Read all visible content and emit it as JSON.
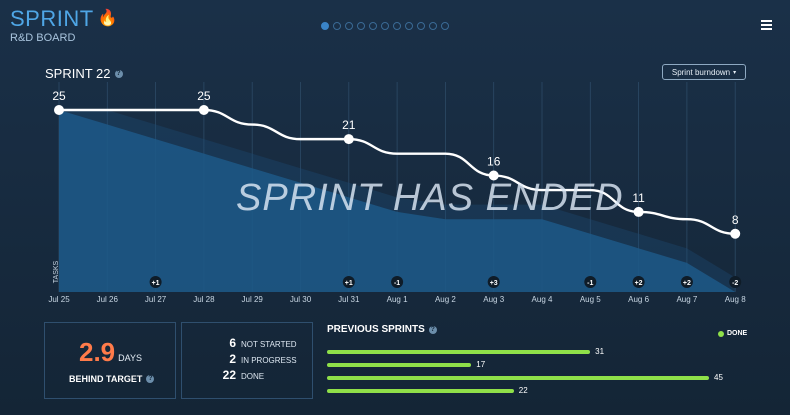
{
  "brand": {
    "title": "SPRINT",
    "subtitle": "R&D BOARD",
    "icon": "flame-icon",
    "accent": "#4fa6e6"
  },
  "pager": {
    "count": 11,
    "active_index": 0
  },
  "sprint": {
    "title": "SPRINT 22",
    "help_label": "?"
  },
  "dropdown": {
    "label": "Sprint burndown",
    "caret": "▾"
  },
  "banner": "SPRINT HAS ENDED",
  "chart_data": {
    "type": "line",
    "ylabel": "TASKS",
    "x": [
      "Jul 25",
      "Jul 26",
      "Jul 27",
      "Jul 28",
      "Jul 29",
      "Jul 30",
      "Jul 31",
      "Aug 1",
      "Aug 2",
      "Aug 3",
      "Aug 4",
      "Aug 5",
      "Aug 6",
      "Aug 7",
      "Aug 8"
    ],
    "series": [
      {
        "values": [
          25,
          25,
          25,
          25,
          23,
          21,
          21,
          19,
          19,
          16,
          14,
          14,
          11,
          10,
          8
        ]
      },
      {
        "values": [
          25,
          23,
          21,
          19,
          17,
          15,
          13,
          11,
          10,
          10,
          10,
          8,
          6,
          4,
          0
        ]
      }
    ],
    "point_labels": [
      {
        "x": "Jul 25",
        "value": 25
      },
      {
        "x": "Jul 28",
        "value": 25
      },
      {
        "x": "Jul 31",
        "value": 21
      },
      {
        "x": "Aug 3",
        "value": 16
      },
      {
        "x": "Aug 6",
        "value": 11
      },
      {
        "x": "Aug 8",
        "value": 8
      }
    ],
    "scope_changes": [
      {
        "x": "Jul 27",
        "label": "+1"
      },
      {
        "x": "Jul 31",
        "label": "+1"
      },
      {
        "x": "Aug 1",
        "label": "-1"
      },
      {
        "x": "Aug 3",
        "label": "+3"
      },
      {
        "x": "Aug 5",
        "label": "-1"
      },
      {
        "x": "Aug 6",
        "label": "+2"
      },
      {
        "x": "Aug 7",
        "label": "+2"
      },
      {
        "x": "Aug 8",
        "label": "-2"
      }
    ],
    "ylim": [
      0,
      25
    ],
    "grid": true,
    "colors": {
      "line": "#ffffff",
      "area": "#1f5f8f",
      "ideal": "#1c4e78"
    }
  },
  "behind": {
    "value": "2.9",
    "unit": "DAYS",
    "label": "BEHIND TARGET",
    "color": "#ff7b4a"
  },
  "status": [
    {
      "count": "6",
      "label": "NOT STARTED"
    },
    {
      "count": "2",
      "label": "IN PROGRESS"
    },
    {
      "count": "22",
      "label": "DONE"
    }
  ],
  "previous": {
    "title": "PREVIOUS SPRINTS",
    "legend": "DONE",
    "legend_color": "#8fe049",
    "values": [
      31,
      17,
      45,
      22
    ],
    "max": 45
  }
}
